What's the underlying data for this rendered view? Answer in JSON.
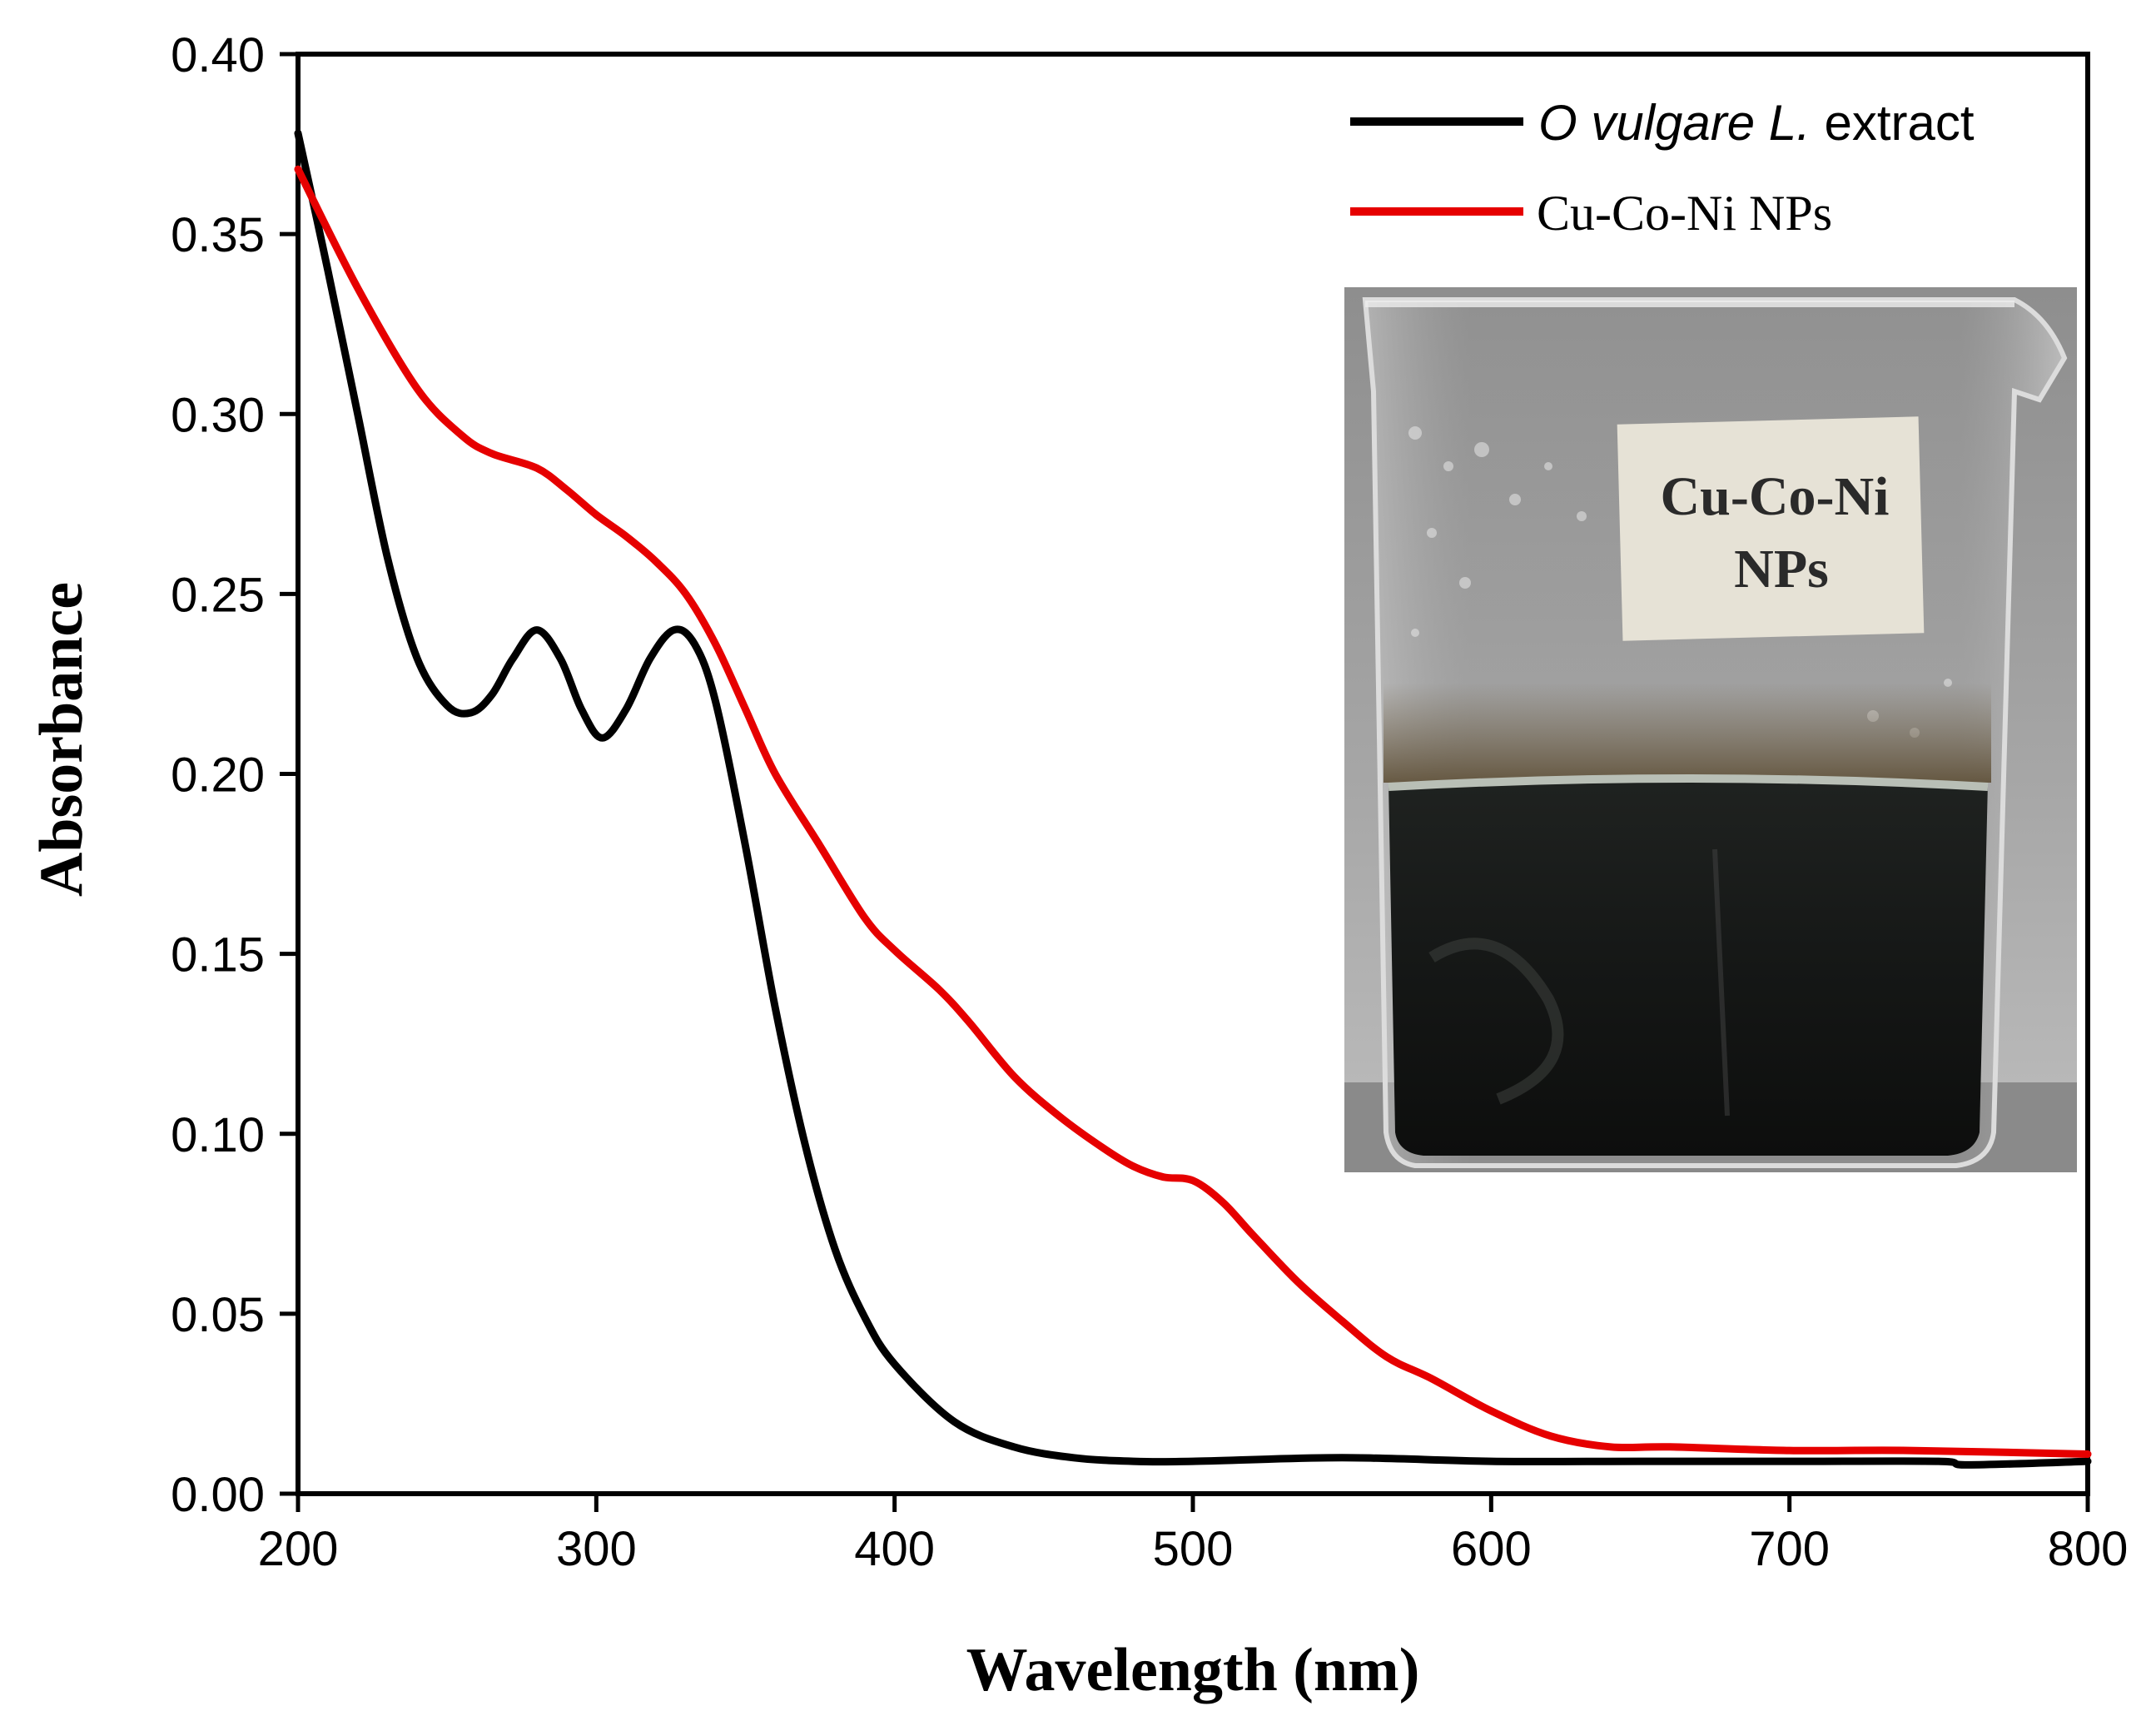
{
  "chart_data": {
    "type": "line",
    "title": "",
    "xlabel": "Wavelength (nm)",
    "ylabel": "Absorbance",
    "xlim": [
      200,
      800
    ],
    "ylim": [
      0.0,
      0.4
    ],
    "x_ticks": [
      200,
      300,
      400,
      500,
      600,
      700,
      800
    ],
    "x_tick_labels": [
      "200",
      "300",
      "400",
      "500",
      "600",
      "700",
      "800"
    ],
    "y_ticks": [
      0.0,
      0.05,
      0.1,
      0.15,
      0.2,
      0.25,
      0.3,
      0.35,
      0.4
    ],
    "y_tick_labels": [
      "0.00",
      "0.05",
      "0.10",
      "0.15",
      "0.20",
      "0.25",
      "0.30",
      "0.35",
      "0.40"
    ],
    "grid": false,
    "legend_position": "top-right",
    "series": [
      {
        "name_italic": "O vulgare L.",
        "name_suffix": " extract",
        "color": "#000000",
        "x": [
          200,
          210,
          220,
          230,
          240,
          250,
          258,
          265,
          272,
          280,
          288,
          295,
          302,
          310,
          318,
          326,
          333,
          340,
          350,
          360,
          370,
          380,
          390,
          400,
          420,
          440,
          460,
          480,
          500,
          550,
          600,
          650,
          700,
          750,
          760,
          800
        ],
        "y": [
          0.378,
          0.34,
          0.3,
          0.26,
          0.232,
          0.219,
          0.217,
          0.222,
          0.232,
          0.24,
          0.232,
          0.218,
          0.21,
          0.218,
          0.232,
          0.24,
          0.236,
          0.22,
          0.18,
          0.135,
          0.097,
          0.068,
          0.049,
          0.036,
          0.02,
          0.013,
          0.01,
          0.009,
          0.009,
          0.01,
          0.009,
          0.009,
          0.009,
          0.009,
          0.008,
          0.009
        ]
      },
      {
        "name": "Cu-Co-Ni NPs",
        "color": "#e60000",
        "x": [
          200,
          220,
          240,
          255,
          265,
          280,
          290,
          300,
          310,
          320,
          330,
          340,
          350,
          360,
          375,
          390,
          400,
          415,
          425,
          440,
          455,
          470,
          480,
          490,
          500,
          510,
          520,
          535,
          550,
          565,
          580,
          600,
          620,
          640,
          660,
          700,
          740,
          800
        ],
        "y": [
          0.368,
          0.335,
          0.307,
          0.294,
          0.289,
          0.285,
          0.279,
          0.272,
          0.266,
          0.259,
          0.25,
          0.236,
          0.218,
          0.2,
          0.18,
          0.16,
          0.151,
          0.14,
          0.131,
          0.116,
          0.105,
          0.096,
          0.091,
          0.088,
          0.087,
          0.081,
          0.072,
          0.059,
          0.048,
          0.038,
          0.032,
          0.023,
          0.016,
          0.013,
          0.013,
          0.012,
          0.012,
          0.011
        ]
      }
    ],
    "inset": {
      "type": "photo",
      "subject": "beaker",
      "label_line1": "Cu-Co-Ni",
      "label_line2": "NPs"
    }
  }
}
